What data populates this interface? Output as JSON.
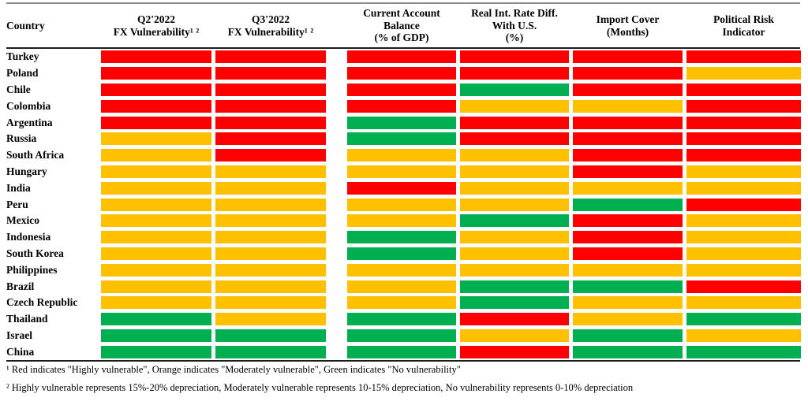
{
  "table": {
    "headers": [
      "Country",
      "Q2'2022\nFX Vulnerability¹ ²",
      "Q3'2022\nFX Vulnerability¹ ²",
      "Current Account\nBalance\n(% of GDP)",
      "Real Int. Rate Diff.\nWith U.S.\n(%)",
      "Import Cover\n(Months)",
      "Political Risk\nIndicator"
    ]
  },
  "chart_data": {
    "type": "heatmap",
    "columns": [
      "Q2'2022 FX Vulnerability",
      "Q3'2022 FX Vulnerability",
      "Current Account Balance (% of GDP)",
      "Real Int. Rate Diff. With U.S. (%)",
      "Import Cover (Months)",
      "Political Risk Indicator"
    ],
    "rows": [
      {
        "country": "Turkey",
        "values": [
          "red",
          "red",
          "red",
          "red",
          "red",
          "red"
        ]
      },
      {
        "country": "Poland",
        "values": [
          "red",
          "red",
          "red",
          "red",
          "red",
          "orange"
        ]
      },
      {
        "country": "Chile",
        "values": [
          "red",
          "red",
          "red",
          "green",
          "red",
          "red"
        ]
      },
      {
        "country": "Colombia",
        "values": [
          "red",
          "red",
          "red",
          "orange",
          "orange",
          "red"
        ]
      },
      {
        "country": "Argentina",
        "values": [
          "red",
          "red",
          "green",
          "red",
          "red",
          "red"
        ]
      },
      {
        "country": "Russia",
        "values": [
          "orange",
          "red",
          "green",
          "red",
          "red",
          "red"
        ]
      },
      {
        "country": "South Africa",
        "values": [
          "orange",
          "red",
          "orange",
          "orange",
          "red",
          "red"
        ]
      },
      {
        "country": "Hungary",
        "values": [
          "orange",
          "orange",
          "orange",
          "orange",
          "red",
          "orange"
        ]
      },
      {
        "country": "India",
        "values": [
          "orange",
          "orange",
          "red",
          "orange",
          "orange",
          "orange"
        ]
      },
      {
        "country": "Peru",
        "values": [
          "orange",
          "orange",
          "orange",
          "orange",
          "green",
          "red"
        ]
      },
      {
        "country": "Mexico",
        "values": [
          "orange",
          "orange",
          "orange",
          "green",
          "red",
          "orange"
        ]
      },
      {
        "country": "Indonesia",
        "values": [
          "orange",
          "orange",
          "green",
          "orange",
          "red",
          "orange"
        ]
      },
      {
        "country": "South Korea",
        "values": [
          "orange",
          "orange",
          "green",
          "orange",
          "red",
          "orange"
        ]
      },
      {
        "country": "Philippines",
        "values": [
          "orange",
          "orange",
          "orange",
          "orange",
          "orange",
          "orange"
        ]
      },
      {
        "country": "Brazil",
        "values": [
          "orange",
          "orange",
          "orange",
          "green",
          "green",
          "red"
        ]
      },
      {
        "country": "Czech Republic",
        "values": [
          "orange",
          "orange",
          "orange",
          "green",
          "orange",
          "orange"
        ]
      },
      {
        "country": "Thailand",
        "values": [
          "green",
          "orange",
          "green",
          "red",
          "orange",
          "green"
        ]
      },
      {
        "country": "Israel",
        "values": [
          "green",
          "green",
          "green",
          "orange",
          "green",
          "orange"
        ]
      },
      {
        "country": "China",
        "values": [
          "green",
          "green",
          "green",
          "red",
          "green",
          "green"
        ]
      }
    ],
    "legend": {
      "red": "Highly vulnerable",
      "orange": "Moderately vulnerable",
      "green": "No vulnerability"
    }
  },
  "colors": {
    "red": "#FF0000",
    "orange": "#FFC000",
    "green": "#00B050"
  },
  "footnotes": [
    "¹ Red indicates \"Highly vulnerable\", Orange indicates \"Moderately vulnerable\", Green indicates \"No vulnerability\"",
    "² Highly vulnerable represents 15%-20% depreciation, Moderately vulnerable represents 10-15% depreciation, No vulnerability represents 0-10% depreciation"
  ]
}
